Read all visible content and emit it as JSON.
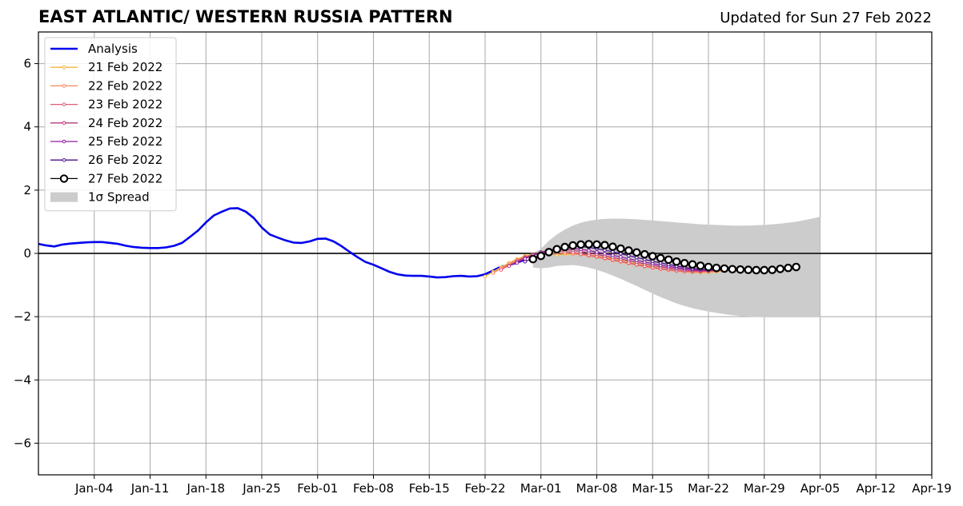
{
  "chart_data": {
    "type": "line",
    "title": "EAST ATLANTIC/ WESTERN RUSSIA PATTERN",
    "subtitle": "Updated for Sun 27 Feb 2022",
    "xlabel": "",
    "ylabel": "",
    "xlim": [
      "2021-12-28",
      "2022-04-19"
    ],
    "ylim": [
      -7,
      7
    ],
    "x_ticks": [
      "Jan-04",
      "Jan-11",
      "Jan-18",
      "Jan-25",
      "Feb-01",
      "Feb-08",
      "Feb-15",
      "Feb-22",
      "Mar-01",
      "Mar-08",
      "Mar-15",
      "Mar-22",
      "Mar-29",
      "Apr-05",
      "Apr-12",
      "Apr-19"
    ],
    "x_tick_dates": [
      "2022-01-04",
      "2022-01-11",
      "2022-01-18",
      "2022-01-25",
      "2022-02-01",
      "2022-02-08",
      "2022-02-15",
      "2022-02-22",
      "2022-03-01",
      "2022-03-08",
      "2022-03-15",
      "2022-03-22",
      "2022-03-29",
      "2022-04-05",
      "2022-04-12",
      "2022-04-19"
    ],
    "y_ticks": [
      -6,
      -4,
      -2,
      0,
      2,
      4,
      6
    ],
    "y_tick_labels": [
      "−6",
      "−4",
      "−2",
      "0",
      "2",
      "4",
      "6"
    ],
    "grid": true,
    "legend_position": "top-left",
    "spread_label": "1σ Spread",
    "series": [
      {
        "name": "Analysis",
        "color": "#0000ee",
        "start_date": "2021-12-28",
        "values": [
          0.3,
          0.25,
          0.22,
          0.28,
          0.31,
          0.33,
          0.35,
          0.36,
          0.36,
          0.33,
          0.3,
          0.24,
          0.2,
          0.18,
          0.17,
          0.17,
          0.19,
          0.24,
          0.33,
          0.52,
          0.72,
          0.98,
          1.2,
          1.32,
          1.42,
          1.43,
          1.32,
          1.12,
          0.82,
          0.6,
          0.5,
          0.41,
          0.34,
          0.33,
          0.38,
          0.46,
          0.47,
          0.38,
          0.23,
          0.05,
          -0.12,
          -0.27,
          -0.36,
          -0.47,
          -0.58,
          -0.66,
          -0.7,
          -0.71,
          -0.71,
          -0.73,
          -0.76,
          -0.75,
          -0.72,
          -0.71,
          -0.73,
          -0.72,
          -0.66,
          -0.54,
          -0.42,
          -0.37,
          -0.29,
          -0.2
        ]
      },
      {
        "name": "21 Feb 2022",
        "color": "#f5b53b",
        "start_date": "2022-02-22",
        "values": [
          -0.73,
          -0.58,
          -0.44,
          -0.3,
          -0.18,
          -0.08,
          -0.02,
          -0.02,
          -0.03,
          -0.04,
          -0.03,
          -0.02,
          -0.02,
          -0.04,
          -0.08,
          -0.12,
          -0.17,
          -0.22,
          -0.27,
          -0.32,
          -0.37,
          -0.42,
          -0.47,
          -0.51,
          -0.55,
          -0.58,
          -0.6,
          -0.61,
          -0.6,
          -0.58,
          -0.56
        ]
      },
      {
        "name": "22 Feb 2022",
        "color": "#f7875a",
        "start_date": "2022-02-23",
        "values": [
          -0.62,
          -0.48,
          -0.34,
          -0.2,
          -0.1,
          -0.04,
          -0.01,
          0.0,
          0.01,
          0.01,
          -0.01,
          -0.04,
          -0.08,
          -0.12,
          -0.17,
          -0.22,
          -0.27,
          -0.32,
          -0.37,
          -0.42,
          -0.46,
          -0.5,
          -0.53,
          -0.56,
          -0.58,
          -0.59,
          -0.59,
          -0.58,
          -0.56,
          -0.54
        ]
      },
      {
        "name": "23 Feb 2022",
        "color": "#e05c78",
        "start_date": "2022-02-24",
        "values": [
          -0.52,
          -0.38,
          -0.24,
          -0.12,
          -0.04,
          0.02,
          0.06,
          0.07,
          0.06,
          0.03,
          -0.01,
          -0.05,
          -0.1,
          -0.15,
          -0.2,
          -0.25,
          -0.3,
          -0.35,
          -0.4,
          -0.44,
          -0.48,
          -0.51,
          -0.54,
          -0.56,
          -0.57,
          -0.57,
          -0.56,
          -0.54,
          -0.52
        ]
      },
      {
        "name": "24 Feb 2022",
        "color": "#b73779",
        "start_date": "2022-02-25",
        "values": [
          -0.4,
          -0.26,
          -0.14,
          -0.04,
          0.04,
          0.09,
          0.12,
          0.12,
          0.1,
          0.06,
          0.02,
          -0.03,
          -0.08,
          -0.13,
          -0.18,
          -0.23,
          -0.28,
          -0.33,
          -0.38,
          -0.42,
          -0.46,
          -0.49,
          -0.52,
          -0.54,
          -0.55,
          -0.55,
          -0.54,
          -0.52
        ]
      },
      {
        "name": "25 Feb 2022",
        "color": "#8c1fa0",
        "start_date": "2022-02-26",
        "values": [
          -0.3,
          -0.17,
          -0.06,
          0.03,
          0.1,
          0.15,
          0.17,
          0.16,
          0.13,
          0.09,
          0.04,
          -0.01,
          -0.06,
          -0.11,
          -0.17,
          -0.22,
          -0.27,
          -0.32,
          -0.37,
          -0.41,
          -0.45,
          -0.48,
          -0.51,
          -0.52,
          -0.53,
          -0.52,
          -0.5
        ]
      },
      {
        "name": "26 Feb 2022",
        "color": "#4b0c8c",
        "start_date": "2022-02-27",
        "values": [
          -0.26,
          -0.15,
          -0.04,
          0.06,
          0.14,
          0.19,
          0.22,
          0.22,
          0.19,
          0.15,
          0.1,
          0.05,
          -0.01,
          -0.07,
          -0.13,
          -0.19,
          -0.25,
          -0.3,
          -0.35,
          -0.4,
          -0.44,
          -0.48,
          -0.5,
          -0.52,
          -0.52,
          -0.51
        ]
      },
      {
        "name": "27 Feb 2022",
        "color": "#000000",
        "start_date": "2022-02-28",
        "values": [
          -0.18,
          -0.08,
          0.04,
          0.13,
          0.2,
          0.25,
          0.28,
          0.29,
          0.28,
          0.26,
          0.21,
          0.15,
          0.09,
          0.03,
          -0.03,
          -0.09,
          -0.15,
          -0.2,
          -0.26,
          -0.31,
          -0.35,
          -0.39,
          -0.43,
          -0.46,
          -0.48,
          -0.5,
          -0.51,
          -0.52,
          -0.53,
          -0.53,
          -0.52,
          -0.49,
          -0.46,
          -0.43
        ]
      }
    ],
    "spread": {
      "color": "#cccccc",
      "start_date": "2022-02-28",
      "upper": [
        0.0,
        0.15,
        0.4,
        0.6,
        0.75,
        0.88,
        0.97,
        1.03,
        1.07,
        1.09,
        1.1,
        1.1,
        1.09,
        1.08,
        1.06,
        1.04,
        1.02,
        1.0,
        0.98,
        0.96,
        0.94,
        0.92,
        0.91,
        0.9,
        0.89,
        0.88,
        0.88,
        0.88,
        0.89,
        0.9,
        0.92,
        0.94,
        0.97,
        1.0,
        1.05,
        1.1,
        1.16
      ],
      "lower": [
        -0.45,
        -0.47,
        -0.45,
        -0.4,
        -0.38,
        -0.37,
        -0.4,
        -0.45,
        -0.52,
        -0.6,
        -0.7,
        -0.8,
        -0.92,
        -1.03,
        -1.15,
        -1.27,
        -1.38,
        -1.48,
        -1.58,
        -1.66,
        -1.73,
        -1.79,
        -1.84,
        -1.88,
        -1.92,
        -1.95,
        -1.98,
        -2.0,
        -2.01,
        -2.02,
        -2.02,
        -2.02,
        -2.02,
        -2.02,
        -2.02,
        -2.02,
        -2.02
      ]
    }
  }
}
